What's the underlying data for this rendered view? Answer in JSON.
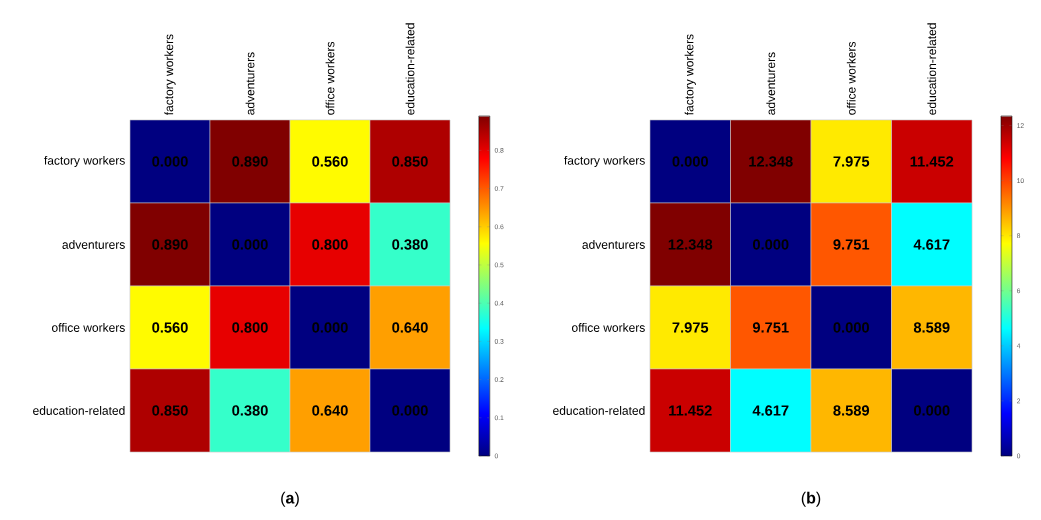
{
  "chart_data": [
    {
      "type": "heatmap",
      "title": "(**a**)",
      "categories": [
        "factory workers",
        "adventurers",
        "office workers",
        "education-related"
      ],
      "y_categories": [
        "factory workers",
        "adventurers",
        "office workers",
        "education-related"
      ],
      "cells": [
        [
          0.0,
          0.89,
          0.56,
          0.85
        ],
        [
          0.89,
          0.0,
          0.8,
          0.38
        ],
        [
          0.56,
          0.8,
          0.0,
          0.64
        ],
        [
          0.85,
          0.38,
          0.64,
          0.0
        ]
      ],
      "cell_labels": [
        [
          "0.000",
          "0.890",
          "0.560",
          "0.850"
        ],
        [
          "0.890",
          "0.000",
          "0.800",
          "0.380"
        ],
        [
          "0.560",
          "0.800",
          "0.000",
          "0.640"
        ],
        [
          "0.850",
          "0.380",
          "0.640",
          "0.000"
        ]
      ],
      "clim": [
        0,
        0.89
      ],
      "cticks": [
        0,
        0.1,
        0.2,
        0.3,
        0.4,
        0.5,
        0.6,
        0.7,
        0.8
      ]
    },
    {
      "type": "heatmap",
      "title": "(**b**)",
      "categories": [
        "factory workers",
        "adventurers",
        "office workers",
        "education-related"
      ],
      "y_categories": [
        "factory workers",
        "adventurers",
        "office workers",
        "education-related"
      ],
      "cells": [
        [
          0.0,
          12.348,
          7.975,
          11.452
        ],
        [
          12.348,
          0.0,
          9.751,
          4.617
        ],
        [
          7.975,
          9.751,
          0.0,
          8.589
        ],
        [
          11.452,
          4.617,
          8.589,
          0.0
        ]
      ],
      "cell_labels": [
        [
          "0.000",
          "12.348",
          "7.975",
          "11.452"
        ],
        [
          "12.348",
          "0.000",
          "9.751",
          "4.617"
        ],
        [
          "7.975",
          "9.751",
          "0.000",
          "8.589"
        ],
        [
          "11.452",
          "4.617",
          "8.589",
          "0.000"
        ]
      ],
      "clim": [
        0,
        12.348
      ],
      "cticks": [
        0,
        2,
        4,
        6,
        8,
        10,
        12
      ]
    }
  ]
}
